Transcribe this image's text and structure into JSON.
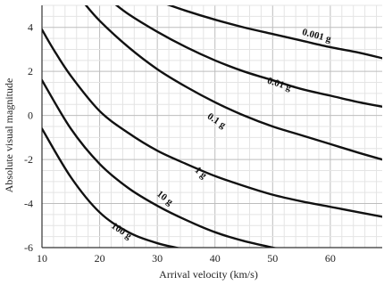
{
  "chart_data": {
    "type": "line",
    "xlabel": "Arrival velocity  (km/s)",
    "ylabel": "Absolute visual magnitude",
    "xlim": [
      10,
      69
    ],
    "ylim": [
      -6,
      5
    ],
    "x_ticks": [
      10,
      20,
      30,
      40,
      50,
      60
    ],
    "y_ticks": [
      -6,
      -4,
      -2,
      0,
      2,
      4
    ],
    "x_tick_labels": [
      "10",
      "20",
      "30",
      "40",
      "50",
      "60"
    ],
    "y_tick_labels": [
      "-6",
      "-4",
      "-2",
      "0",
      "2",
      "4"
    ],
    "grid": true,
    "legend": "none",
    "series": [
      {
        "name": "0.001 g",
        "x": [
          30,
          35,
          40,
          45,
          50,
          55,
          60,
          65,
          69
        ],
        "y": [
          5.2,
          4.75,
          4.35,
          4.0,
          3.7,
          3.4,
          3.1,
          2.85,
          2.6
        ]
      },
      {
        "name": "0.01 g",
        "x": [
          22,
          25,
          30,
          35,
          40,
          45,
          50,
          55,
          60,
          65,
          69
        ],
        "y": [
          5.2,
          4.6,
          3.8,
          3.1,
          2.5,
          2.0,
          1.6,
          1.2,
          0.9,
          0.6,
          0.4
        ]
      },
      {
        "name": "0.1 g",
        "x": [
          17,
          20,
          25,
          30,
          35,
          40,
          45,
          50,
          55,
          60,
          65,
          69
        ],
        "y": [
          5.2,
          4.3,
          3.1,
          2.1,
          1.3,
          0.6,
          0.0,
          -0.5,
          -0.9,
          -1.3,
          -1.7,
          -2.0
        ]
      },
      {
        "name": "1 g",
        "x": [
          10,
          12,
          15,
          20,
          25,
          30,
          35,
          40,
          45,
          50,
          55,
          60,
          65,
          69
        ],
        "y": [
          3.9,
          3.0,
          1.8,
          0.2,
          -0.8,
          -1.6,
          -2.2,
          -2.75,
          -3.2,
          -3.6,
          -3.9,
          -4.15,
          -4.4,
          -4.6
        ]
      },
      {
        "name": "10 g",
        "x": [
          10,
          15,
          20,
          25,
          30,
          35,
          40,
          45,
          50,
          53
        ],
        "y": [
          1.6,
          -0.6,
          -2.2,
          -3.3,
          -4.1,
          -4.75,
          -5.3,
          -5.7,
          -6.0,
          -6.2
        ]
      },
      {
        "name": "100 g",
        "x": [
          10,
          15,
          20,
          25,
          30,
          35,
          36
        ],
        "y": [
          -0.6,
          -2.8,
          -4.4,
          -5.3,
          -5.8,
          -6.1,
          -6.2
        ]
      }
    ],
    "annotations": [
      "0.001 g",
      "0.01 g",
      "0.1 g",
      "1 g",
      "10 g",
      "100 g"
    ]
  }
}
